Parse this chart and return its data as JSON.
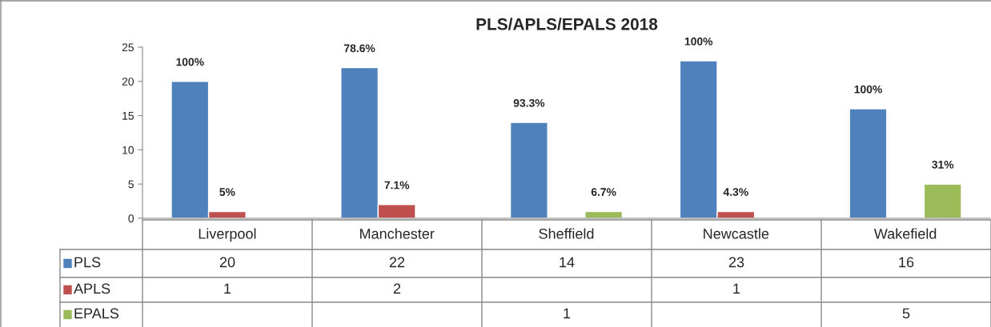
{
  "chart_data": {
    "type": "bar",
    "title": "PLS/APLS/EPALS 2018",
    "categories": [
      "Liverpool",
      "Manchester",
      "Sheffield",
      "Newcastle",
      "Wakefield"
    ],
    "series": [
      {
        "name": "PLS",
        "color": "#4f81bd",
        "values": [
          20,
          22,
          14,
          23,
          16
        ],
        "value_labels": [
          "20",
          "22",
          "14",
          "23",
          "16"
        ]
      },
      {
        "name": "APLS",
        "color": "#c0504d",
        "values": [
          1,
          2,
          null,
          1,
          null
        ],
        "value_labels": [
          "1",
          "2",
          null,
          "1",
          null
        ]
      },
      {
        "name": "EPALS",
        "color": "#9bbb59",
        "values": [
          null,
          null,
          1,
          null,
          5
        ],
        "value_labels": [
          null,
          null,
          "1",
          null,
          "5"
        ]
      }
    ],
    "annotations": [
      "100%",
      "78.6%",
      "93.3%",
      "100%",
      "100%",
      "5%",
      "7.1%",
      "4.3%",
      "6.7%",
      "31%"
    ],
    "data_labels": true,
    "ylim": [
      0,
      25
    ],
    "yticks": [
      0,
      5,
      10,
      15,
      20,
      25
    ],
    "grid": false,
    "legend": "bottom"
  }
}
